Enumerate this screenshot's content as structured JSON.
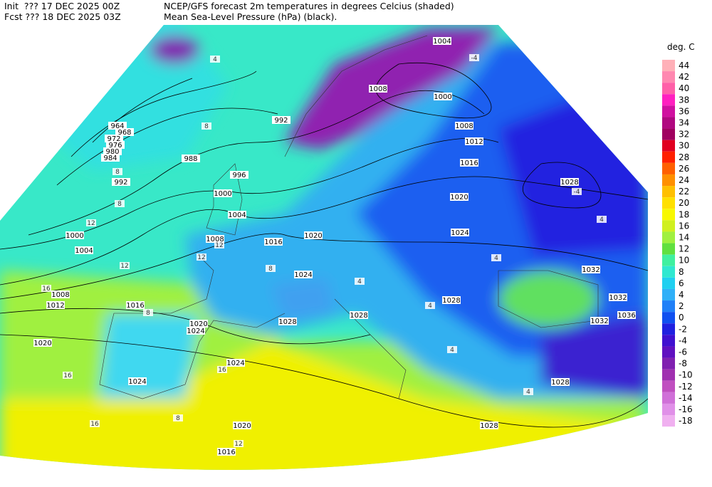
{
  "header": {
    "init": "Init  ??? 17 DEC 2025 00Z",
    "fcst": "Fcst ??? 18 DEC 2025 03Z",
    "title": "NCEP/GFS forecast 2m temperatures in degrees Celcius (shaded)",
    "subtitle": "Mean Sea-Level Pressure (hPa) (black)."
  },
  "colorbar": {
    "unit": "deg. C",
    "labels": [
      44,
      42,
      40,
      38,
      36,
      34,
      32,
      30,
      28,
      26,
      24,
      22,
      20,
      18,
      16,
      14,
      12,
      10,
      8,
      6,
      4,
      2,
      0,
      -2,
      -4,
      -6,
      -8,
      -10,
      -12,
      -14,
      -16,
      -18
    ],
    "colors": [
      "#ffb0b8",
      "#ff88b0",
      "#ff60a8",
      "#ff20c0",
      "#d010a0",
      "#b00880",
      "#a00060",
      "#e00020",
      "#ff2000",
      "#ff6000",
      "#ff9000",
      "#ffc000",
      "#ffe000",
      "#f8f800",
      "#d0f020",
      "#a0f040",
      "#60e040",
      "#40f0a0",
      "#30e8d0",
      "#20d0f0",
      "#30b0f8",
      "#2080f8",
      "#1050f0",
      "#2020e0",
      "#4010d0",
      "#6010c0",
      "#8020b0",
      "#a030b0",
      "#c050c0",
      "#d070d8",
      "#e090e8",
      "#f0b0f0"
    ]
  },
  "isobar_labels": [
    964,
    968,
    972,
    976,
    980,
    984,
    992,
    988,
    996,
    992,
    1000,
    1004,
    1000,
    1004,
    1008,
    1016,
    1020,
    1024,
    1028,
    1028,
    1028,
    1024,
    1020,
    1016,
    1012,
    1008,
    1000,
    1004,
    1032,
    1036,
    1032,
    1032,
    1028,
    1028,
    1028,
    1024,
    1024,
    1020,
    1024,
    1016,
    1012,
    1008,
    1020,
    1020,
    1016,
    1008
  ],
  "temperature_labels": [
    4,
    8,
    8,
    8,
    12,
    12,
    16,
    12,
    16,
    8,
    12,
    4,
    4,
    4,
    -4,
    -4,
    4,
    8,
    4,
    4,
    8,
    16,
    12,
    16
  ]
}
